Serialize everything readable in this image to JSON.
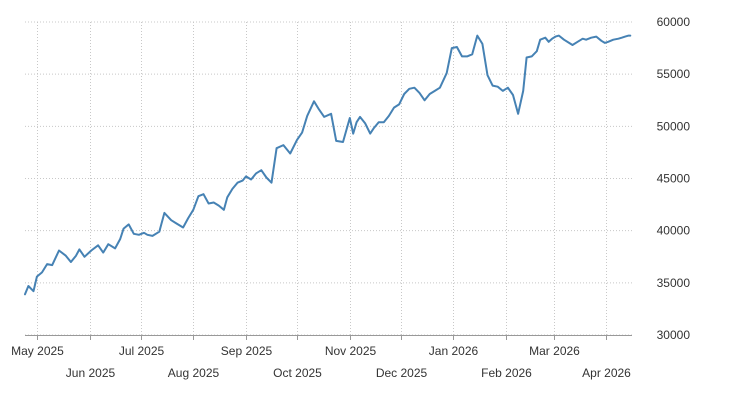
{
  "chart_data": {
    "type": "line",
    "title": "",
    "xlabel": "",
    "ylabel": "",
    "ylim": [
      30000,
      60000
    ],
    "yticks": [
      30000,
      35000,
      40000,
      45000,
      50000,
      55000,
      60000
    ],
    "ytick_labels": [
      "30000",
      "35000",
      "40000",
      "45000",
      "50000",
      "55000",
      "60000"
    ],
    "xlim": [
      "2025-04-24",
      "2026-04-16"
    ],
    "xticks": [
      {
        "date": "2025-05-01",
        "label": "May 2025",
        "row": 1
      },
      {
        "date": "2025-06-01",
        "label": "Jun 2025",
        "row": 2
      },
      {
        "date": "2025-07-01",
        "label": "Jul 2025",
        "row": 1
      },
      {
        "date": "2025-08-01",
        "label": "Aug 2025",
        "row": 2
      },
      {
        "date": "2025-09-01",
        "label": "Sep 2025",
        "row": 1
      },
      {
        "date": "2025-10-01",
        "label": "Oct 2025",
        "row": 2
      },
      {
        "date": "2025-11-01",
        "label": "Nov 2025",
        "row": 1
      },
      {
        "date": "2025-12-01",
        "label": "Dec 2025",
        "row": 2
      },
      {
        "date": "2026-01-01",
        "label": "Jan 2026",
        "row": 1
      },
      {
        "date": "2026-02-01",
        "label": "Feb 2026",
        "row": 2
      },
      {
        "date": "2026-03-01",
        "label": "Mar 2026",
        "row": 1
      },
      {
        "date": "2026-04-01",
        "label": "Apr 2026",
        "row": 2
      }
    ],
    "grid": true,
    "line_color": "#4682b4",
    "series": [
      {
        "x": [
          "2025-04-24",
          "2025-04-26",
          "2025-04-29",
          "2025-05-01",
          "2025-05-04",
          "2025-05-07",
          "2025-05-10",
          "2025-05-14",
          "2025-05-18",
          "2025-05-21",
          "2025-05-24",
          "2025-05-26",
          "2025-05-29",
          "2025-06-02",
          "2025-06-06",
          "2025-06-09",
          "2025-06-12",
          "2025-06-16",
          "2025-06-19",
          "2025-06-21",
          "2025-06-24",
          "2025-06-27",
          "2025-06-30",
          "2025-07-03",
          "2025-07-05",
          "2025-07-08",
          "2025-07-12",
          "2025-07-15",
          "2025-07-19",
          "2025-07-22",
          "2025-07-26",
          "2025-07-29",
          "2025-08-01",
          "2025-08-04",
          "2025-08-07",
          "2025-08-10",
          "2025-08-13",
          "2025-08-16",
          "2025-08-19",
          "2025-08-21",
          "2025-08-24",
          "2025-08-27",
          "2025-08-30",
          "2025-09-01",
          "2025-09-04",
          "2025-09-07",
          "2025-09-10",
          "2025-09-13",
          "2025-09-16",
          "2025-09-19",
          "2025-09-23",
          "2025-09-27",
          "2025-10-01",
          "2025-10-04",
          "2025-10-07",
          "2025-10-11",
          "2025-10-14",
          "2025-10-17",
          "2025-10-21",
          "2025-10-24",
          "2025-10-28",
          "2025-11-01",
          "2025-11-03",
          "2025-11-05",
          "2025-11-07",
          "2025-11-10",
          "2025-11-13",
          "2025-11-15",
          "2025-11-18",
          "2025-11-21",
          "2025-11-24",
          "2025-11-27",
          "2025-11-30",
          "2025-12-03",
          "2025-12-06",
          "2025-12-09",
          "2025-12-12",
          "2025-12-15",
          "2025-12-18",
          "2025-12-21",
          "2025-12-24",
          "2025-12-28",
          "2025-12-31",
          "2026-01-03",
          "2026-01-06",
          "2026-01-09",
          "2026-01-12",
          "2026-01-15",
          "2026-01-18",
          "2026-01-21",
          "2026-01-24",
          "2026-01-27",
          "2026-01-30",
          "2026-02-02",
          "2026-02-05",
          "2026-02-08",
          "2026-02-11",
          "2026-02-13",
          "2026-02-16",
          "2026-02-19",
          "2026-02-21",
          "2026-02-24",
          "2026-02-26",
          "2026-02-28",
          "2026-03-02",
          "2026-03-04",
          "2026-03-07",
          "2026-03-10",
          "2026-03-12",
          "2026-03-15",
          "2026-03-18",
          "2026-03-20",
          "2026-03-23",
          "2026-03-26",
          "2026-03-29",
          "2026-03-31",
          "2026-04-02",
          "2026-04-05",
          "2026-04-08",
          "2026-04-10",
          "2026-04-12",
          "2026-04-14",
          "2026-04-15"
        ],
        "y": [
          33900,
          34700,
          34200,
          35600,
          36000,
          36800,
          36700,
          38100,
          37600,
          37000,
          37600,
          38200,
          37500,
          38100,
          38600,
          37900,
          38700,
          38300,
          39200,
          40200,
          40600,
          39700,
          39600,
          39800,
          39600,
          39500,
          39900,
          41700,
          41000,
          40700,
          40300,
          41200,
          42000,
          43300,
          43500,
          42600,
          42700,
          42400,
          42000,
          43200,
          44000,
          44600,
          44800,
          45200,
          44900,
          45500,
          45800,
          45100,
          44600,
          47900,
          48200,
          47400,
          48700,
          49400,
          51000,
          52400,
          51600,
          50900,
          51200,
          48600,
          48500,
          50800,
          49300,
          50400,
          50900,
          50300,
          49300,
          49800,
          50400,
          50400,
          51000,
          51800,
          52100,
          53100,
          53600,
          53700,
          53200,
          52500,
          53100,
          53400,
          53700,
          55100,
          57500,
          57600,
          56700,
          56700,
          56900,
          58700,
          57900,
          54900,
          53900,
          53800,
          53400,
          53700,
          53000,
          51200,
          53400,
          56600,
          56700,
          57200,
          58300,
          58500,
          58100,
          58400,
          58600,
          58700,
          58300,
          58000,
          57800,
          58100,
          58400,
          58300,
          58500,
          58600,
          58200,
          58000,
          58100,
          58300,
          58400,
          58500,
          58600,
          58700,
          58700
        ]
      }
    ]
  }
}
